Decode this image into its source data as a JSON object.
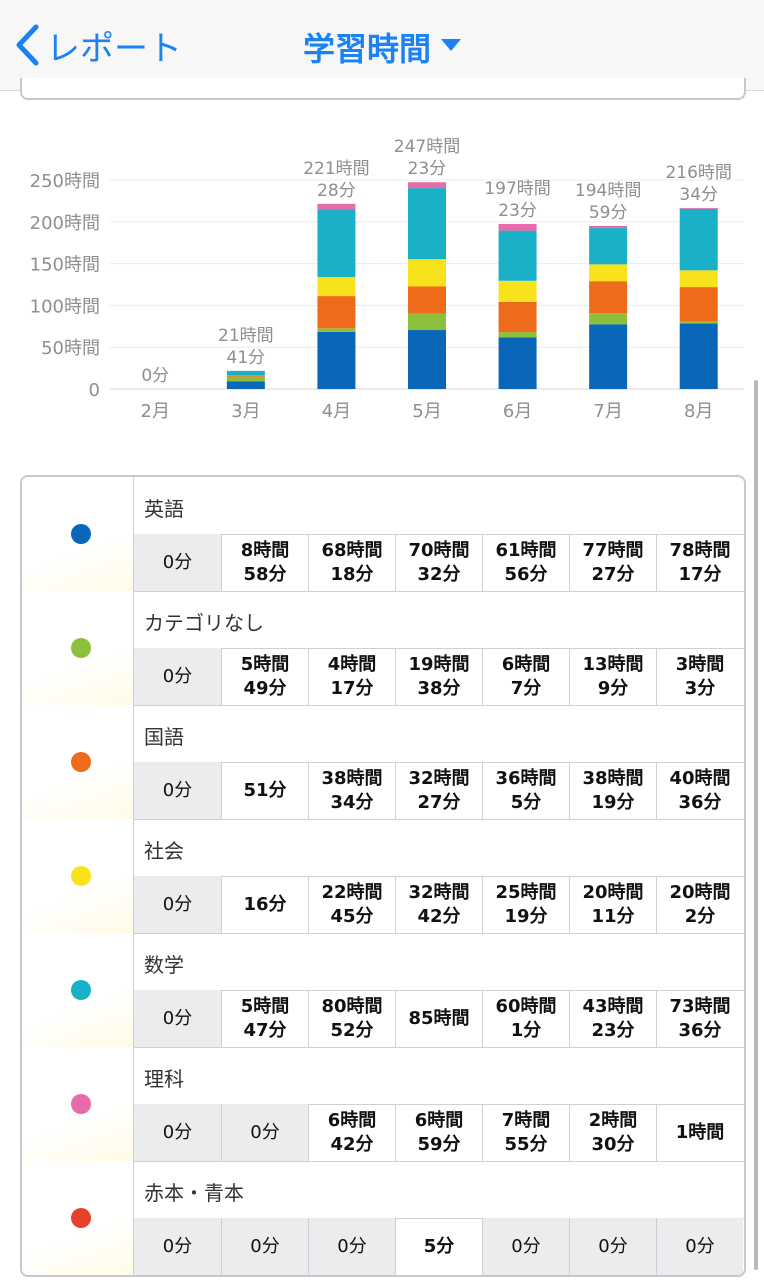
{
  "nav": {
    "back_label": "レポート",
    "title": "学習時間"
  },
  "colors": {
    "accent": "#1a82f5",
    "英語": "#0a66b8",
    "カテゴリなし": "#8cc03a",
    "国語": "#ef6b1c",
    "社会": "#f7e21c",
    "数学": "#1ab0c8",
    "理科": "#e86aa8",
    "赤本・青本": "#e8412b"
  },
  "chart_data": {
    "type": "bar",
    "stacked": true,
    "categories": [
      "2月",
      "3月",
      "4月",
      "5月",
      "6月",
      "7月",
      "8月"
    ],
    "y_ticks": [
      "0",
      "50時間",
      "100時間",
      "150時間",
      "200時間",
      "250時間"
    ],
    "ylim": [
      0,
      250
    ],
    "grid": true,
    "total_labels": [
      [
        "0分"
      ],
      [
        "21時間",
        "41分"
      ],
      [
        "221時間",
        "28分"
      ],
      [
        "247時間",
        "23分"
      ],
      [
        "197時間",
        "23分"
      ],
      [
        "194時間",
        "59分"
      ],
      [
        "216時間",
        "34分"
      ]
    ],
    "series": [
      {
        "name": "英語",
        "values": [
          0,
          8.97,
          68.3,
          70.53,
          61.93,
          77.45,
          78.28
        ]
      },
      {
        "name": "カテゴリなし",
        "values": [
          0,
          5.82,
          4.28,
          19.63,
          6.12,
          13.15,
          3.05
        ]
      },
      {
        "name": "国語",
        "values": [
          0,
          0.85,
          38.57,
          32.45,
          36.08,
          38.32,
          40.6
        ]
      },
      {
        "name": "社会",
        "values": [
          0,
          0.27,
          22.75,
          32.7,
          25.32,
          20.18,
          20.03
        ]
      },
      {
        "name": "数学",
        "values": [
          0,
          5.78,
          80.87,
          85.0,
          60.02,
          43.38,
          73.6
        ]
      },
      {
        "name": "理科",
        "values": [
          0,
          0,
          6.7,
          6.98,
          7.92,
          2.5,
          1.0
        ]
      },
      {
        "name": "赤本・青本",
        "values": [
          0,
          0,
          0,
          0.08,
          0,
          0,
          0
        ]
      }
    ]
  },
  "table": {
    "rows": [
      {
        "label": "英語",
        "cells": [
          [
            "0分"
          ],
          [
            "8時間",
            "58分"
          ],
          [
            "68時間",
            "18分"
          ],
          [
            "70時間",
            "32分"
          ],
          [
            "61時間",
            "56分"
          ],
          [
            "77時間",
            "27分"
          ],
          [
            "78時間",
            "17分"
          ]
        ]
      },
      {
        "label": "カテゴリなし",
        "cells": [
          [
            "0分"
          ],
          [
            "5時間",
            "49分"
          ],
          [
            "4時間",
            "17分"
          ],
          [
            "19時間",
            "38分"
          ],
          [
            "6時間",
            "7分"
          ],
          [
            "13時間",
            "9分"
          ],
          [
            "3時間",
            "3分"
          ]
        ]
      },
      {
        "label": "国語",
        "cells": [
          [
            "0分"
          ],
          [
            "51分"
          ],
          [
            "38時間",
            "34分"
          ],
          [
            "32時間",
            "27分"
          ],
          [
            "36時間",
            "5分"
          ],
          [
            "38時間",
            "19分"
          ],
          [
            "40時間",
            "36分"
          ]
        ]
      },
      {
        "label": "社会",
        "cells": [
          [
            "0分"
          ],
          [
            "16分"
          ],
          [
            "22時間",
            "45分"
          ],
          [
            "32時間",
            "42分"
          ],
          [
            "25時間",
            "19分"
          ],
          [
            "20時間",
            "11分"
          ],
          [
            "20時間",
            "2分"
          ]
        ]
      },
      {
        "label": "数学",
        "cells": [
          [
            "0分"
          ],
          [
            "5時間",
            "47分"
          ],
          [
            "80時間",
            "52分"
          ],
          [
            "85時間"
          ],
          [
            "60時間",
            "1分"
          ],
          [
            "43時間",
            "23分"
          ],
          [
            "73時間",
            "36分"
          ]
        ]
      },
      {
        "label": "理科",
        "cells": [
          [
            "0分"
          ],
          [
            "0分"
          ],
          [
            "6時間",
            "42分"
          ],
          [
            "6時間",
            "59分"
          ],
          [
            "7時間",
            "55分"
          ],
          [
            "2時間",
            "30分"
          ],
          [
            "1時間"
          ]
        ]
      },
      {
        "label": "赤本・青本",
        "cells": [
          [
            "0分"
          ],
          [
            "0分"
          ],
          [
            "0分"
          ],
          [
            "5分"
          ],
          [
            "0分"
          ],
          [
            "0分"
          ],
          [
            "0分"
          ]
        ]
      }
    ]
  }
}
